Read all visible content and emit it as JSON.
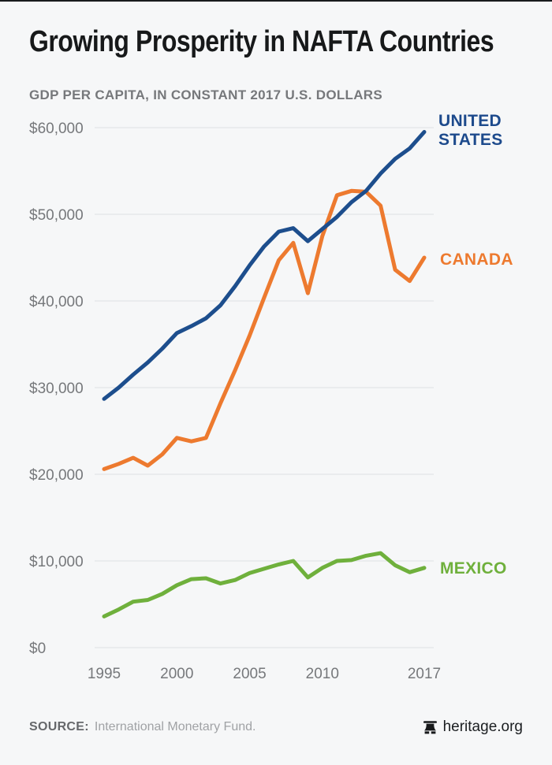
{
  "header": {
    "title": "Growing Prosperity in NAFTA Countries",
    "subtitle": "GDP PER CAPITA, IN CONSTANT 2017 U.S. DOLLARS"
  },
  "chart_data": {
    "type": "line",
    "title": "Growing Prosperity in NAFTA Countries",
    "subtitle": "GDP PER CAPITA, IN CONSTANT 2017 U.S. DOLLARS",
    "xlabel": "",
    "ylabel": "GDP per capita, constant 2017 U.S. dollars",
    "xlim": [
      1995,
      2017
    ],
    "ylim": [
      0,
      60000
    ],
    "grid": "horizontal",
    "legend_position": "right-of-line-ends",
    "x": [
      1995,
      1996,
      1997,
      1998,
      1999,
      2000,
      2001,
      2002,
      2003,
      2004,
      2005,
      2006,
      2007,
      2008,
      2009,
      2010,
      2011,
      2012,
      2013,
      2014,
      2015,
      2016,
      2017
    ],
    "series": [
      {
        "name": "CANADA",
        "color": "#ed7a2f",
        "values": [
          20600,
          21200,
          21900,
          21000,
          22300,
          24200,
          23800,
          24200,
          28200,
          32000,
          36000,
          40400,
          44700,
          46700,
          40900,
          47500,
          52200,
          52700,
          52600,
          51000,
          43600,
          42300,
          45000
        ]
      },
      {
        "name": "UNITED STATES",
        "color": "#1d4e8d",
        "values": [
          28700,
          30000,
          31500,
          32900,
          34500,
          36300,
          37100,
          38000,
          39500,
          41700,
          44100,
          46300,
          48000,
          48400,
          46900,
          48300,
          49700,
          51400,
          52700,
          54700,
          56400,
          57600,
          59500
        ]
      },
      {
        "name": "MEXICO",
        "color": "#6fb03c",
        "values": [
          3600,
          4400,
          5300,
          5500,
          6200,
          7200,
          7900,
          8000,
          7400,
          7800,
          8600,
          9100,
          9600,
          10000,
          8100,
          9200,
          10000,
          10100,
          10600,
          10900,
          9500,
          8700,
          9200
        ]
      }
    ],
    "y_ticks": [
      {
        "value": 60000,
        "label": "$60,000"
      },
      {
        "value": 50000,
        "label": "$50,000"
      },
      {
        "value": 40000,
        "label": "$40,000"
      },
      {
        "value": 30000,
        "label": "$30,000"
      },
      {
        "value": 20000,
        "label": "$20,000"
      },
      {
        "value": 10000,
        "label": "$10,000"
      },
      {
        "value": 0,
        "label": "$0"
      }
    ],
    "x_ticks": [
      {
        "value": 1995,
        "label": "1995"
      },
      {
        "value": 2000,
        "label": "2000"
      },
      {
        "value": 2005,
        "label": "2005"
      },
      {
        "value": 2010,
        "label": "2010"
      },
      {
        "value": 2017,
        "label": "2017"
      }
    ],
    "colors": {
      "grid": "#e6e8ea",
      "axis_text": "#76787b",
      "background": "#f6f7f8"
    }
  },
  "footer": {
    "source_label": "SOURCE:",
    "source_text": "International Monetary Fund.",
    "brand": "heritage.org",
    "brand_icon": "liberty-bell-icon"
  }
}
